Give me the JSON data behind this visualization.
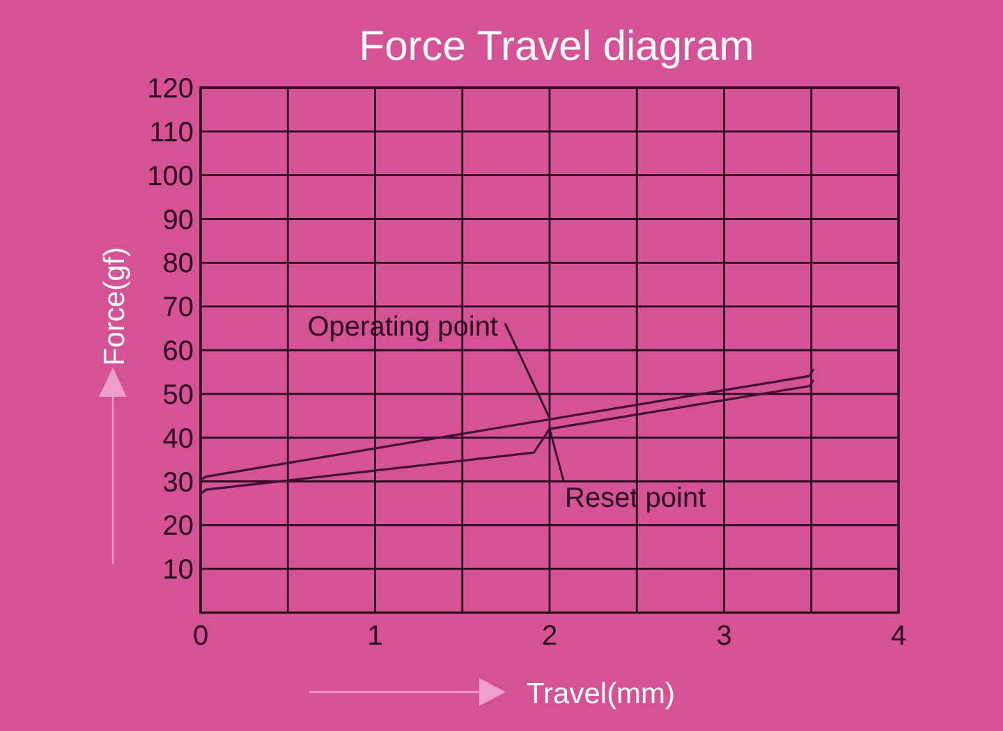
{
  "chart_data": {
    "type": "line",
    "title": "Force Travel diagram",
    "xlabel": "Travel(mm)",
    "ylabel": "Force(gf)",
    "series": [
      {
        "color": "#430f33",
        "x": [
          0,
          0.03,
          3.49,
          3.51
        ],
        "values": [
          30.3,
          31.1,
          54.1,
          55.5
        ]
      },
      {
        "color": "#430f33",
        "x": [
          0,
          0.03,
          1.91,
          2,
          3.49,
          3.51
        ],
        "values": [
          27.1,
          28.1,
          36.6,
          42,
          51.8,
          53
        ]
      }
    ],
    "xlim": [
      0,
      4
    ],
    "xticks": [
      0,
      {
        "value": 0.5,
        "label": null
      },
      1,
      {
        "value": 1.5,
        "label": null
      },
      2,
      {
        "value": 2.5,
        "label": null
      },
      3,
      {
        "value": 3.5,
        "label": null
      },
      4
    ],
    "ylim": [
      0,
      120
    ],
    "yticks": [
      10,
      20,
      30,
      40,
      50,
      60,
      70,
      80,
      90,
      100,
      110,
      120
    ],
    "grid": true,
    "marker": "none",
    "line_style": "solid",
    "annotations": [
      {
        "text": "Operating point",
        "x": 2,
        "y": 44.5
      },
      {
        "text": "Reset point",
        "x": 2,
        "y": 42
      }
    ]
  }
}
